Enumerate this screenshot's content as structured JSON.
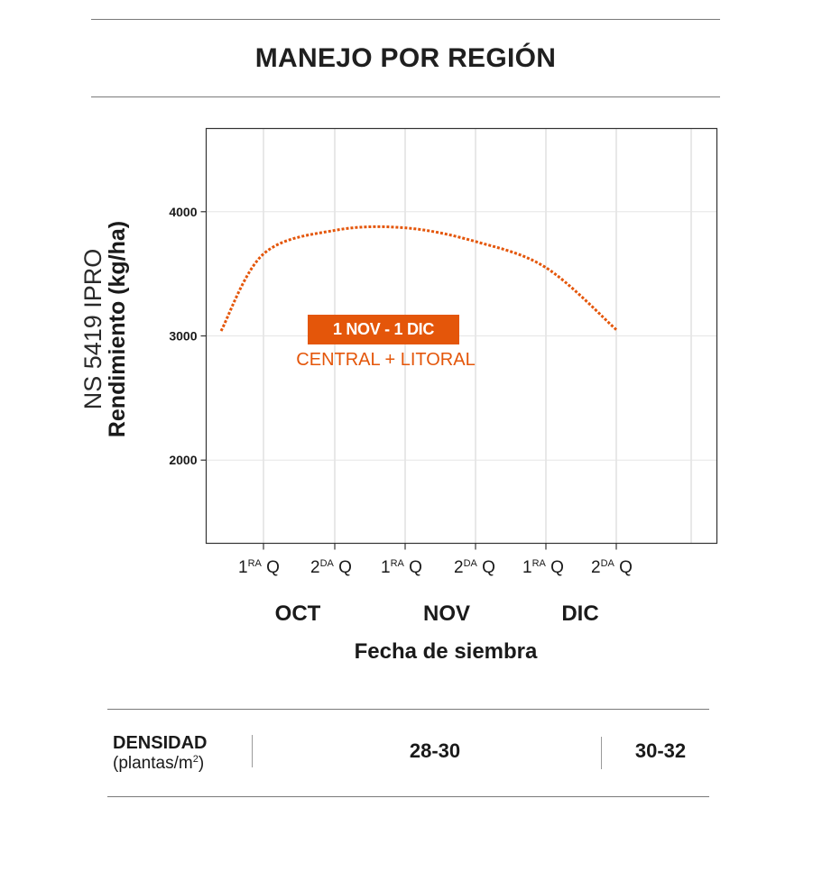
{
  "title": "MANEJO POR REGIÓN",
  "y_axis": {
    "product": "NS 5419 IPRO",
    "label": "Rendimiento (kg/ha)"
  },
  "x_axis": {
    "quincenas": [
      {
        "base": "1",
        "sup": "RA",
        "q": "Q"
      },
      {
        "base": "2",
        "sup": "DA",
        "q": "Q"
      },
      {
        "base": "1",
        "sup": "RA",
        "q": "Q"
      },
      {
        "base": "2",
        "sup": "DA",
        "q": "Q"
      },
      {
        "base": "1",
        "sup": "RA",
        "q": "Q"
      },
      {
        "base": "2",
        "sup": "DA",
        "q": "Q"
      }
    ],
    "months": [
      "OCT",
      "NOV",
      "DIC"
    ],
    "title": "Fecha de siembra"
  },
  "annotation": {
    "window": "1 NOV - 1 DIC",
    "region": "CENTRAL + LITORAL"
  },
  "density": {
    "label": "DENSIDAD",
    "unit_prefix": "(plantas/m",
    "unit_sup": "2",
    "unit_suffix": ")",
    "values": [
      "28-30",
      "30-32"
    ]
  },
  "colors": {
    "accent": "#e4560a",
    "grid": "#d0d0d0",
    "axis": "#333333"
  },
  "chart_data": {
    "type": "line",
    "title": "MANEJO POR REGIÓN",
    "xlabel": "Fecha de siembra",
    "ylabel": "Rendimiento (kg/ha)",
    "x_ticks": [
      "1RA Q OCT",
      "2DA Q OCT",
      "1RA Q NOV",
      "2DA Q NOV",
      "1RA Q DIC",
      "2DA Q DIC"
    ],
    "y_ticks": [
      2000,
      3000,
      4000
    ],
    "ylim": [
      1330,
      4670
    ],
    "grid": true,
    "series": [
      {
        "line_style": "dotted",
        "x": [
          "1 OCT",
          "16 OCT",
          "1 NOV",
          "16 NOV",
          "1 DIC",
          "16 DIC",
          "31 DIC"
        ],
        "y": [
          3040,
          3660,
          3850,
          3870,
          3760,
          3550,
          3050
        ]
      }
    ]
  }
}
